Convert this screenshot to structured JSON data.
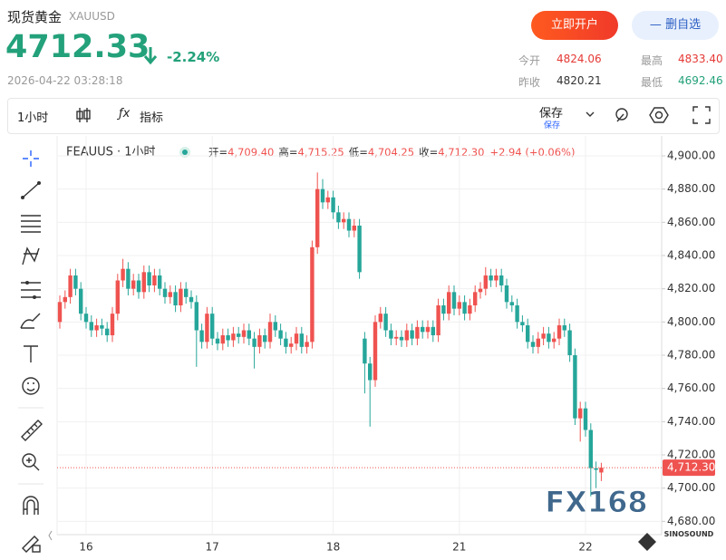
{
  "header": {
    "title": "现货黄金",
    "symbol": "XAUUSD",
    "price": "4712.33",
    "change": "-2.24%",
    "time": "2026-04-22 03:28:18",
    "open_account": "立即开户",
    "remove_watch": "删自选"
  },
  "stats": [
    {
      "label": "今开",
      "value": "4824.06"
    },
    {
      "label": "最高",
      "value": "4833.40"
    },
    {
      "label": "昨收",
      "value": "4820.21"
    },
    {
      "label": "最低",
      "value": "4692.46"
    }
  ],
  "toolbar": {
    "interval": "1小时",
    "indicators": "指标",
    "save": "保存",
    "save_sub": "保存"
  },
  "legend": {
    "series": "FEAUUS · 1小时",
    "items": [
      {
        "label": "开=",
        "value": "4,709.40"
      },
      {
        "label": "高=",
        "value": "4,715.25"
      },
      {
        "label": "低=",
        "value": "4,704.25"
      },
      {
        "label": "收=",
        "value": "4,712.30"
      }
    ],
    "change": "+2.94 (+0.06%)"
  },
  "watermark": "FX168",
  "watermark_sub": "SINOSOUND",
  "chart_data": {
    "type": "candlestick",
    "categories": [
      null,
      null,
      null,
      null,
      null,
      "16",
      null,
      null,
      null,
      null,
      null,
      null,
      null,
      null,
      null,
      null,
      null,
      null,
      null,
      null,
      null,
      null,
      null,
      null,
      null,
      null,
      null,
      null,
      null,
      "17",
      null,
      null,
      null,
      null,
      null,
      null,
      null,
      null,
      null,
      null,
      null,
      null,
      null,
      null,
      null,
      null,
      null,
      null,
      null,
      null,
      null,
      null,
      "18",
      null,
      null,
      null,
      null,
      null,
      null,
      null,
      null,
      null,
      null,
      null,
      null,
      null,
      null,
      null,
      null,
      null,
      null,
      null,
      null,
      null,
      null,
      null,
      "21",
      null,
      null,
      null,
      null,
      null,
      null,
      null,
      null,
      null,
      null,
      null,
      null,
      null,
      null,
      null,
      null,
      null,
      null,
      null,
      null,
      null,
      null,
      null,
      "22",
      null,
      null,
      null
    ],
    "open": [
      4800,
      4812,
      4815,
      4828,
      4820,
      4805,
      4800,
      4795,
      4798,
      4796,
      4792,
      4805,
      4825,
      4832,
      4820,
      4825,
      4818,
      4830,
      4822,
      4828,
      4820,
      4815,
      4818,
      4810,
      4820,
      4815,
      4812,
      4795,
      4788,
      4805,
      4790,
      4787,
      4792,
      4789,
      4793,
      4791,
      4795,
      4790,
      4785,
      4792,
      4788,
      4800,
      4795,
      4790,
      4785,
      4787,
      4793,
      4785,
      4788,
      4845,
      4880,
      4872,
      4875,
      4866,
      4860,
      4862,
      4855,
      4858,
      4790,
      4775,
      4765,
      4800,
      4805,
      4795,
      4790,
      4791,
      4789,
      4795,
      4790,
      4797,
      4794,
      4797,
      4792,
      4810,
      4805,
      4818,
      4808,
      4812,
      4805,
      4810,
      4818,
      4820,
      4828,
      4825,
      4828,
      4822,
      4812,
      4810,
      4800,
      4798,
      4788,
      4785,
      4790,
      4793,
      4788,
      4790,
      4798,
      4795,
      4780,
      4742,
      4748,
      4735,
      4712,
      4709.4
    ],
    "high": [
      4816,
      4819,
      4832,
      4832,
      4824,
      4809,
      4804,
      4802,
      4802,
      4800,
      4809,
      4829,
      4838,
      4836,
      4829,
      4829,
      4834,
      4834,
      4832,
      4832,
      4824,
      4822,
      4822,
      4824,
      4824,
      4819,
      4816,
      4799,
      4809,
      4809,
      4794,
      4796,
      4796,
      4797,
      4797,
      4799,
      4799,
      4794,
      4796,
      4796,
      4805,
      4804,
      4799,
      4794,
      4791,
      4797,
      4797,
      4792,
      4849,
      4890,
      4886,
      4879,
      4879,
      4870,
      4866,
      4866,
      4862,
      4862,
      4794,
      4779,
      4804,
      4809,
      4809,
      4799,
      4795,
      4795,
      4799,
      4799,
      4801,
      4801,
      4801,
      4801,
      4814,
      4814,
      4822,
      4822,
      4816,
      4816,
      4814,
      4822,
      4824,
      4833,
      4832,
      4832,
      4832,
      4826,
      4816,
      4814,
      4804,
      4802,
      4792,
      4794,
      4797,
      4797,
      4794,
      4802,
      4802,
      4799,
      4784,
      4752,
      4752,
      4739,
      4716,
      4715.25
    ],
    "low": [
      4796,
      4808,
      4811,
      4816,
      4801,
      4796,
      4791,
      4791,
      4792,
      4788,
      4788,
      4801,
      4821,
      4816,
      4816,
      4814,
      4814,
      4818,
      4818,
      4816,
      4811,
      4811,
      4806,
      4806,
      4811,
      4808,
      4773,
      4784,
      4784,
      4786,
      4783,
      4783,
      4785,
      4785,
      4787,
      4787,
      4786,
      4772,
      4781,
      4784,
      4784,
      4791,
      4786,
      4781,
      4781,
      4783,
      4781,
      4781,
      4784,
      4841,
      4868,
      4868,
      4862,
      4856,
      4856,
      4851,
      4851,
      4826,
      4757,
      4737,
      4761,
      4796,
      4791,
      4786,
      4786,
      4785,
      4785,
      4786,
      4786,
      4790,
      4790,
      4788,
      4788,
      4801,
      4801,
      4804,
      4804,
      4801,
      4801,
      4806,
      4814,
      4816,
      4821,
      4821,
      4818,
      4808,
      4806,
      4796,
      4794,
      4784,
      4781,
      4781,
      4786,
      4784,
      4784,
      4786,
      4791,
      4776,
      4738,
      4728,
      4731,
      4695,
      4700,
      4704.25
    ],
    "close": [
      4812,
      4815,
      4828,
      4820,
      4805,
      4800,
      4795,
      4798,
      4796,
      4792,
      4805,
      4825,
      4832,
      4820,
      4825,
      4818,
      4830,
      4822,
      4828,
      4820,
      4815,
      4818,
      4810,
      4820,
      4815,
      4812,
      4795,
      4788,
      4805,
      4790,
      4787,
      4792,
      4789,
      4793,
      4791,
      4795,
      4790,
      4785,
      4792,
      4788,
      4800,
      4795,
      4790,
      4785,
      4787,
      4793,
      4785,
      4788,
      4845,
      4880,
      4872,
      4875,
      4866,
      4860,
      4862,
      4855,
      4858,
      4830,
      4775,
      4765,
      4800,
      4805,
      4795,
      4790,
      4791,
      4789,
      4795,
      4790,
      4797,
      4794,
      4797,
      4792,
      4810,
      4805,
      4818,
      4808,
      4812,
      4805,
      4810,
      4818,
      4820,
      4828,
      4825,
      4828,
      4822,
      4812,
      4810,
      4800,
      4798,
      4788,
      4785,
      4790,
      4793,
      4788,
      4790,
      4798,
      4795,
      4780,
      4742,
      4748,
      4735,
      4712,
      4711,
      4712.3
    ],
    "up_color": "#ef5350",
    "down_color": "#26a69a",
    "ylim": [
      4672,
      4912
    ],
    "yticks": [
      {
        "value": 4680,
        "label": "4,680.00"
      },
      {
        "value": 4700,
        "label": "4,700.00"
      },
      {
        "value": 4720,
        "label": "4,720.00"
      },
      {
        "value": 4740,
        "label": "4,740.00"
      },
      {
        "value": 4760,
        "label": "4,760.00"
      },
      {
        "value": 4780,
        "label": "4,780.00"
      },
      {
        "value": 4800,
        "label": "4,800.00"
      },
      {
        "value": 4820,
        "label": "4,820.00"
      },
      {
        "value": 4840,
        "label": "4,840.00"
      },
      {
        "value": 4860,
        "label": "4,860.00"
      },
      {
        "value": 4880,
        "label": "4,880.00"
      },
      {
        "value": 4900,
        "label": "4,900.00"
      }
    ],
    "last_price": {
      "value": 4712.3,
      "label": "4,712.30"
    },
    "grid": true
  }
}
